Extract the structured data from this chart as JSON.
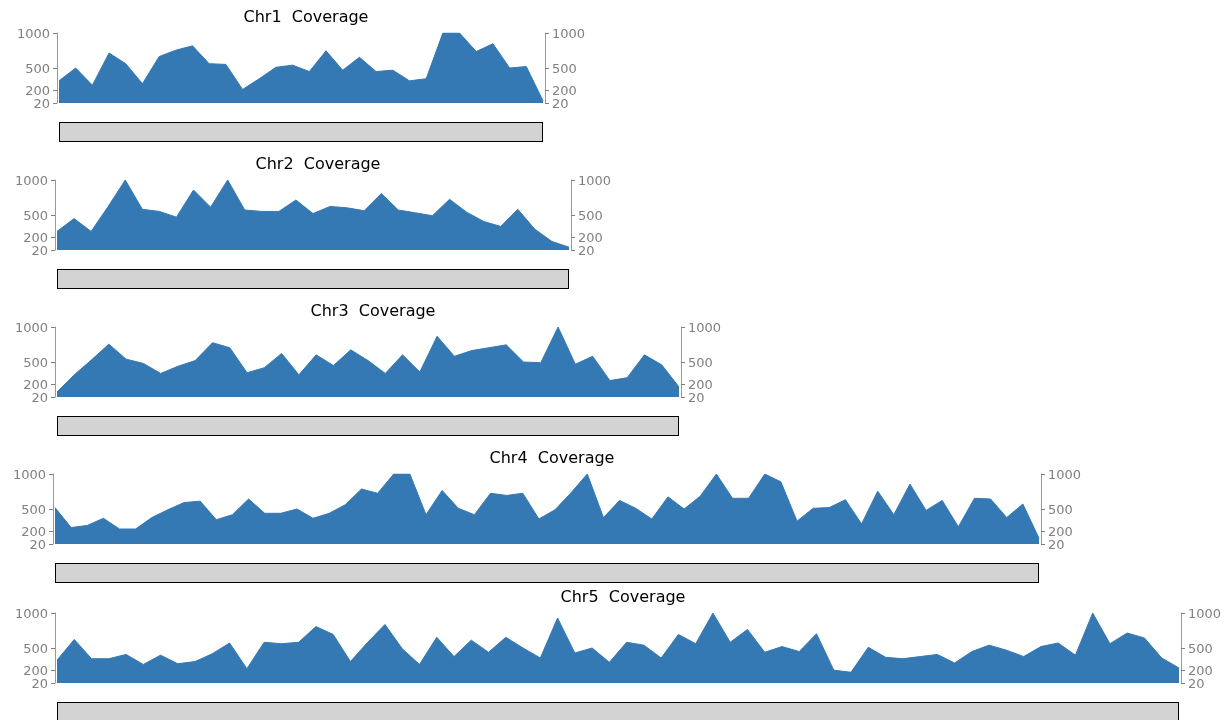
{
  "chart_data": [
    {
      "type": "area",
      "title": "Chr1  Coverage",
      "categories": [
        null,
        null,
        null,
        null,
        null,
        null,
        null,
        null,
        null,
        null,
        null,
        null,
        null,
        null,
        null,
        null,
        null,
        null,
        null,
        null,
        null,
        null,
        null,
        null,
        null,
        null,
        null,
        null,
        null,
        null
      ],
      "series": [
        {
          "color": "#3579b4",
          "values": [
            330,
            510,
            270,
            720,
            570,
            290,
            670,
            760,
            820,
            570,
            560,
            210,
            360,
            520,
            550,
            460,
            750,
            480,
            660,
            460,
            480,
            330,
            360,
            1000,
            1000,
            740,
            850,
            510,
            530,
            50
          ]
        }
      ],
      "ylim": [
        20,
        1000
      ],
      "yticks": [
        20,
        200,
        500,
        1000
      ],
      "y2lim": [
        20,
        1000
      ],
      "y2ticks": [
        20,
        200,
        500,
        1000
      ],
      "grid": false,
      "marker": "none"
    },
    {
      "type": "area",
      "title": "Chr2  Coverage",
      "categories": [
        null,
        null,
        null,
        null,
        null,
        null,
        null,
        null,
        null,
        null,
        null,
        null,
        null,
        null,
        null,
        null,
        null,
        null,
        null,
        null,
        null,
        null,
        null,
        null,
        null,
        null,
        null,
        null,
        null,
        null,
        null
      ],
      "series": [
        {
          "color": "#3579b4",
          "values": [
            280,
            460,
            280,
            630,
            1000,
            590,
            560,
            480,
            860,
            620,
            1000,
            580,
            560,
            560,
            720,
            530,
            630,
            610,
            570,
            810,
            580,
            540,
            500,
            730,
            550,
            420,
            350,
            590,
            310,
            140,
            60
          ]
        }
      ],
      "ylim": [
        20,
        1000
      ],
      "yticks": [
        20,
        200,
        500,
        1000
      ],
      "y2lim": [
        20,
        1000
      ],
      "y2ticks": [
        20,
        200,
        500,
        1000
      ],
      "grid": false,
      "marker": "none"
    },
    {
      "type": "area",
      "title": "Chr3  Coverage",
      "categories": [
        null,
        null,
        null,
        null,
        null,
        null,
        null,
        null,
        null,
        null,
        null,
        null,
        null,
        null,
        null,
        null,
        null,
        null,
        null,
        null,
        null,
        null,
        null,
        null,
        null,
        null,
        null,
        null,
        null,
        null,
        null,
        null,
        null,
        null,
        null,
        null,
        null
      ],
      "series": [
        {
          "color": "#3579b4",
          "values": [
            90,
            330,
            540,
            760,
            550,
            490,
            350,
            450,
            530,
            780,
            710,
            360,
            430,
            630,
            330,
            610,
            460,
            680,
            530,
            350,
            610,
            370,
            870,
            590,
            670,
            710,
            750,
            510,
            500,
            1000,
            480,
            590,
            250,
            290,
            610,
            470,
            160
          ]
        }
      ],
      "ylim": [
        20,
        1000
      ],
      "yticks": [
        20,
        200,
        500,
        1000
      ],
      "y2lim": [
        20,
        1000
      ],
      "y2ticks": [
        20,
        200,
        500,
        1000
      ],
      "grid": false,
      "marker": "none"
    },
    {
      "type": "area",
      "title": "Chr4  Coverage",
      "categories": [
        null,
        null,
        null,
        null,
        null,
        null,
        null,
        null,
        null,
        null,
        null,
        null,
        null,
        null,
        null,
        null,
        null,
        null,
        null,
        null,
        null,
        null,
        null,
        null,
        null,
        null,
        null,
        null,
        null,
        null,
        null,
        null,
        null,
        null,
        null,
        null,
        null,
        null,
        null,
        null,
        null,
        null,
        null,
        null,
        null,
        null,
        null,
        null,
        null,
        null,
        null,
        null,
        null,
        null,
        null,
        null,
        null,
        null,
        null,
        null,
        null,
        null
      ],
      "series": [
        {
          "color": "#3579b4",
          "values": [
            530,
            250,
            280,
            380,
            230,
            230,
            390,
            500,
            600,
            620,
            360,
            430,
            650,
            450,
            450,
            510,
            380,
            450,
            570,
            790,
            730,
            1000,
            1000,
            430,
            770,
            520,
            430,
            730,
            700,
            730,
            370,
            500,
            740,
            1000,
            390,
            630,
            520,
            370,
            680,
            510,
            690,
            1000,
            660,
            660,
            1000,
            890,
            340,
            520,
            530,
            640,
            300,
            760,
            430,
            860,
            490,
            630,
            260,
            660,
            650,
            390,
            580,
            100
          ]
        }
      ],
      "ylim": [
        20,
        1000
      ],
      "yticks": [
        20,
        200,
        500,
        1000
      ],
      "y2lim": [
        20,
        1000
      ],
      "y2ticks": [
        20,
        200,
        500,
        1000
      ],
      "grid": false,
      "marker": "none"
    },
    {
      "type": "area",
      "title": "Chr5  Coverage",
      "categories": [
        null,
        null,
        null,
        null,
        null,
        null,
        null,
        null,
        null,
        null,
        null,
        null,
        null,
        null,
        null,
        null,
        null,
        null,
        null,
        null,
        null,
        null,
        null,
        null,
        null,
        null,
        null,
        null,
        null,
        null,
        null,
        null,
        null,
        null,
        null,
        null,
        null,
        null,
        null,
        null,
        null,
        null,
        null,
        null,
        null,
        null,
        null,
        null,
        null,
        null,
        null,
        null,
        null,
        null,
        null,
        null,
        null,
        null,
        null,
        null,
        null,
        null,
        null,
        null,
        null,
        null
      ],
      "series": [
        {
          "color": "#3579b4",
          "values": [
            340,
            630,
            360,
            360,
            420,
            280,
            410,
            290,
            320,
            430,
            580,
            220,
            590,
            570,
            590,
            810,
            700,
            320,
            590,
            840,
            500,
            280,
            660,
            390,
            620,
            450,
            660,
            510,
            370,
            930,
            440,
            510,
            310,
            590,
            550,
            370,
            700,
            570,
            1000,
            590,
            770,
            450,
            530,
            460,
            710,
            200,
            170,
            520,
            380,
            360,
            390,
            420,
            300,
            460,
            550,
            480,
            390,
            530,
            580,
            410,
            1000,
            570,
            720,
            650,
            370,
            230
          ]
        }
      ],
      "ylim": [
        20,
        1000
      ],
      "yticks": [
        20,
        200,
        500,
        1000
      ],
      "y2lim": [
        20,
        1000
      ],
      "y2ticks": [
        20,
        200,
        500,
        1000
      ],
      "grid": false,
      "marker": "none"
    }
  ]
}
